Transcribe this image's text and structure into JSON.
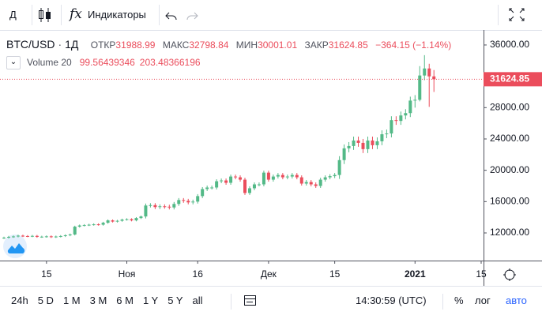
{
  "toolbar": {
    "interval": "Д",
    "indicators_icon": "fx",
    "indicators": "Индикаторы"
  },
  "chart_data": {
    "type": "candlestick",
    "symbol": "BTC/USD",
    "interval": "1Д",
    "ohlc_labels": [
      "ОТКР",
      "МАКС",
      "МИН",
      "ЗАКР"
    ],
    "change": "−364.15 (−1.14%)",
    "volume_indicator": {
      "name": "Volume 20",
      "values": [
        99.56439346,
        203.48366196
      ]
    },
    "up_color": "#53b987",
    "down_color": "#eb4d5c",
    "open": [
      11350,
      11400,
      11500,
      11550,
      11650,
      11600,
      11580,
      11620,
      11500,
      11520,
      11560,
      11480,
      11540,
      11600,
      11700,
      11800,
      12800,
      12950,
      13000,
      13050,
      13100,
      13050,
      13300,
      13600,
      13450,
      13550,
      13700,
      13750,
      13600,
      13900,
      14100,
      15500,
      15550,
      15300,
      15400,
      15350,
      15250,
      15700,
      16200,
      16100,
      15900,
      16000,
      16700,
      17600,
      17800,
      17800,
      18600,
      18700,
      18400,
      19200,
      19100,
      18800,
      17100,
      17700,
      18200,
      18200,
      19700,
      18800,
      19200,
      19400,
      19100,
      19200,
      19400,
      19100,
      18300,
      18500,
      18200,
      18000,
      18800,
      19100,
      19250,
      19400,
      21300,
      22800,
      23100,
      23800,
      23500,
      22700,
      23800,
      23200,
      23700,
      24600,
      24700,
      26400,
      26300,
      27000,
      27300,
      28900,
      29000,
      32100,
      33000,
      31988.99
    ],
    "high": [
      11520,
      11620,
      11670,
      11770,
      11770,
      11720,
      11740,
      11740,
      11640,
      11680,
      11680,
      11660,
      11720,
      11820,
      11920,
      12920,
      13070,
      13120,
      13170,
      13220,
      13220,
      13420,
      13720,
      13720,
      13670,
      13820,
      13870,
      13870,
      14020,
      14220,
      15750,
      15800,
      15800,
      15650,
      15650,
      15600,
      15950,
      16450,
      16450,
      16350,
      16250,
      16950,
      17850,
      18050,
      18050,
      18850,
      18950,
      18950,
      19450,
      19450,
      19350,
      19050,
      17950,
      18450,
      18450,
      19950,
      19950,
      19450,
      19650,
      19650,
      19450,
      19650,
      19650,
      19350,
      18750,
      18750,
      18450,
      19050,
      19350,
      19500,
      19650,
      21800,
      23300,
      23600,
      24300,
      24300,
      24000,
      24300,
      24300,
      24200,
      25100,
      25200,
      26900,
      26900,
      27500,
      27800,
      29400,
      29600,
      33300,
      34700,
      33600,
      32798.84
    ],
    "low": [
      11230,
      11280,
      11380,
      11430,
      11480,
      11460,
      11460,
      11380,
      11380,
      11400,
      11360,
      11360,
      11420,
      11480,
      11580,
      11680,
      12680,
      12830,
      12880,
      12930,
      12930,
      12930,
      13180,
      13330,
      13330,
      13430,
      13580,
      13480,
      13480,
      13780,
      13850,
      15250,
      15050,
      15050,
      15100,
      15000,
      15000,
      15450,
      15850,
      15650,
      15650,
      15750,
      16450,
      17350,
      17550,
      17550,
      18350,
      18150,
      18150,
      18850,
      18550,
      16850,
      16850,
      17450,
      17950,
      17950,
      18550,
      18550,
      18950,
      18850,
      18850,
      18950,
      18850,
      18050,
      18050,
      17950,
      17750,
      17750,
      18550,
      18850,
      19000,
      18900,
      20800,
      22300,
      22600,
      23000,
      22200,
      22200,
      22700,
      22700,
      23200,
      24100,
      24200,
      25800,
      25800,
      26500,
      26800,
      28000,
      28800,
      31500,
      28100,
      30001.01
    ],
    "close": [
      11400,
      11500,
      11550,
      11650,
      11600,
      11580,
      11620,
      11500,
      11520,
      11560,
      11480,
      11540,
      11600,
      11700,
      11800,
      12800,
      12950,
      13000,
      13050,
      13100,
      13050,
      13300,
      13600,
      13450,
      13550,
      13700,
      13750,
      13600,
      13900,
      14100,
      15500,
      15550,
      15300,
      15400,
      15350,
      15250,
      15700,
      16200,
      16100,
      15900,
      16000,
      16700,
      17600,
      17800,
      17800,
      18600,
      18700,
      18400,
      19200,
      19100,
      18800,
      17100,
      17700,
      18200,
      18200,
      19700,
      18800,
      19200,
      19400,
      19100,
      19200,
      19400,
      19100,
      18300,
      18500,
      18200,
      18000,
      18800,
      19100,
      19250,
      19400,
      21300,
      22800,
      23100,
      23800,
      23500,
      22700,
      23800,
      23200,
      23700,
      24600,
      24700,
      26400,
      26300,
      27000,
      27300,
      28900,
      29000,
      32100,
      33000,
      31988.99,
      31624.85
    ],
    "ylim": [
      8470,
      37710
    ],
    "yticks": [
      {
        "value": 12000,
        "label": "12000.00"
      },
      {
        "value": 16000,
        "label": "16000.00"
      },
      {
        "value": 20000,
        "label": "20000.00"
      },
      {
        "value": 24000,
        "label": "24000.00"
      },
      {
        "value": 28000,
        "label": "28000.00"
      },
      {
        "value": 32000,
        "label": "32000.00"
      },
      {
        "value": 36000,
        "label": "36000.00"
      }
    ],
    "xlim": [
      -0.84,
      101.5
    ],
    "xticks": [
      {
        "value": 9,
        "label": "15"
      },
      {
        "value": 26,
        "label": "Ноя"
      },
      {
        "value": 41,
        "label": "16"
      },
      {
        "value": 56,
        "label": "Дек"
      },
      {
        "value": 70,
        "label": "15"
      },
      {
        "value": 87,
        "label": "2021"
      },
      {
        "value": 101,
        "label": "15"
      }
    ],
    "grid": false
  },
  "bottom_bar": {
    "ranges": [
      "24h",
      "5 D",
      "1 M",
      "3 M",
      "6 M",
      "1 Y",
      "5 Y",
      "all"
    ],
    "time": "14:30:59 (UTC)",
    "percent": "%",
    "log": "лог",
    "auto": "авто"
  }
}
